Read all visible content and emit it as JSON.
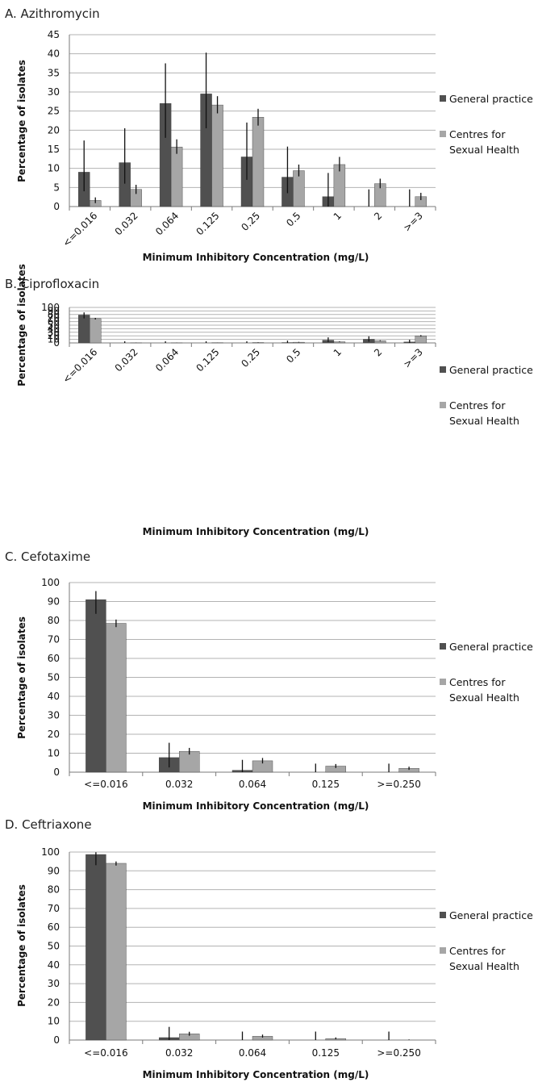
{
  "legend": {
    "series": [
      {
        "label_lines": [
          "General practice"
        ],
        "color": "#505050"
      },
      {
        "label_lines": [
          "Centres for",
          "Sexual Health"
        ],
        "color": "#a6a6a6"
      }
    ]
  },
  "chart_data": [
    {
      "type": "bar",
      "title": "A. Azithromycin",
      "xlabel": "Minimum Inhibitory Concentration (mg/L)",
      "ylabel": "Percentage of isolates",
      "ylim": [
        0,
        45
      ],
      "ytick_step": 5,
      "rotated_labels": true,
      "grid": true,
      "legend_position": "right",
      "categories": [
        "<=0.016",
        "0.032",
        "0.064",
        "0.125",
        "0.25",
        "0.5",
        "1",
        "2",
        ">=3"
      ],
      "series": [
        {
          "name": "General practice",
          "values": [
            9.0,
            11.5,
            27.0,
            29.5,
            13.0,
            7.7,
            2.6,
            0,
            0
          ],
          "error_low": [
            4.0,
            6.0,
            18.0,
            20.5,
            7.0,
            3.5,
            0,
            0,
            0
          ],
          "error_high": [
            17.3,
            20.5,
            37.5,
            40.3,
            22.0,
            15.7,
            8.8,
            4.5,
            4.5
          ]
        },
        {
          "name": "Centres for Sexual Health",
          "values": [
            1.6,
            4.5,
            15.6,
            26.6,
            23.4,
            9.4,
            11.0,
            6.0,
            2.6
          ],
          "error_low": [
            0.9,
            3.3,
            13.8,
            24.4,
            21.2,
            7.9,
            9.2,
            4.8,
            1.7
          ],
          "error_high": [
            2.4,
            5.7,
            17.6,
            28.9,
            25.6,
            11.0,
            13.0,
            7.3,
            3.6
          ]
        }
      ]
    },
    {
      "type": "bar",
      "title": "B. Ciprofloxacin",
      "xlabel": "Minimum Inhibitory Concentration (mg/L)",
      "ylabel": "Percentage of isolates",
      "ylim": [
        0,
        100
      ],
      "ytick_step": 10,
      "rotated_labels": true,
      "grid": true,
      "legend_position": "right",
      "categories": [
        "<=0.016",
        "0.032",
        "0.064",
        "0.125",
        "0.25",
        "0.5",
        "1",
        "2",
        ">=3"
      ],
      "series": [
        {
          "name": "General practice",
          "values": [
            78.5,
            0,
            0,
            0,
            0,
            1.0,
            7.7,
            10.3,
            2.6
          ],
          "error_low": [
            69.0,
            0,
            0,
            0,
            0,
            0,
            2.5,
            3.5,
            0
          ],
          "error_high": [
            86.0,
            4.5,
            4.5,
            4.5,
            4.5,
            6.5,
            15.7,
            18.5,
            9.0
          ]
        },
        {
          "name": "Centres for Sexual Health",
          "values": [
            68.5,
            0.3,
            0.2,
            0.6,
            1.0,
            2.0,
            3.2,
            6.0,
            20.0
          ],
          "error_low": [
            66.0,
            0,
            0,
            0.2,
            0.4,
            1.2,
            2.2,
            4.6,
            18.0
          ],
          "error_high": [
            70.5,
            0.8,
            0.6,
            1.0,
            1.6,
            2.9,
            4.3,
            7.4,
            22.0
          ]
        }
      ]
    },
    {
      "type": "bar",
      "title": "C. Cefotaxime",
      "xlabel": "Minimum Inhibitory Concentration (mg/L)",
      "ylabel": "Percentage of isolates",
      "ylim": [
        0,
        100
      ],
      "ytick_step": 10,
      "rotated_labels": false,
      "grid": true,
      "legend_position": "right",
      "categories": [
        "<=0.016",
        "0.032",
        "0.064",
        "0.125",
        ">=0.250"
      ],
      "series": [
        {
          "name": "General practice",
          "values": [
            91.0,
            7.7,
            1.0,
            0,
            0
          ],
          "error_low": [
            83.5,
            2.5,
            0,
            0,
            0
          ],
          "error_high": [
            95.5,
            15.5,
            6.5,
            4.5,
            4.5
          ]
        },
        {
          "name": "Centres for Sexual Health",
          "values": [
            78.5,
            11.0,
            6.0,
            3.2,
            2.0
          ],
          "error_low": [
            76.5,
            9.3,
            4.6,
            2.2,
            1.2
          ],
          "error_high": [
            80.5,
            12.8,
            7.5,
            4.3,
            2.9
          ]
        }
      ]
    },
    {
      "type": "bar",
      "title": "D. Ceftriaxone",
      "xlabel": "Minimum Inhibitory Concentration (mg/L)",
      "ylabel": "Percentage of isolates",
      "ylim": [
        0,
        100
      ],
      "ytick_step": 10,
      "rotated_labels": false,
      "grid": true,
      "legend_position": "right",
      "categories": [
        "<=0.016",
        "0.032",
        "0.064",
        "0.125",
        ">=0.250"
      ],
      "series": [
        {
          "name": "General practice",
          "values": [
            98.7,
            1.3,
            0,
            0,
            0
          ],
          "error_low": [
            93.0,
            0,
            0,
            0,
            0
          ],
          "error_high": [
            99.9,
            7.0,
            4.5,
            4.5,
            4.5
          ]
        },
        {
          "name": "Centres for Sexual Health",
          "values": [
            94.0,
            3.3,
            2.0,
            0.8,
            0
          ],
          "error_low": [
            92.8,
            2.3,
            1.3,
            0.4,
            0
          ],
          "error_high": [
            95.0,
            4.4,
            2.9,
            1.4,
            0.3
          ]
        }
      ]
    }
  ]
}
